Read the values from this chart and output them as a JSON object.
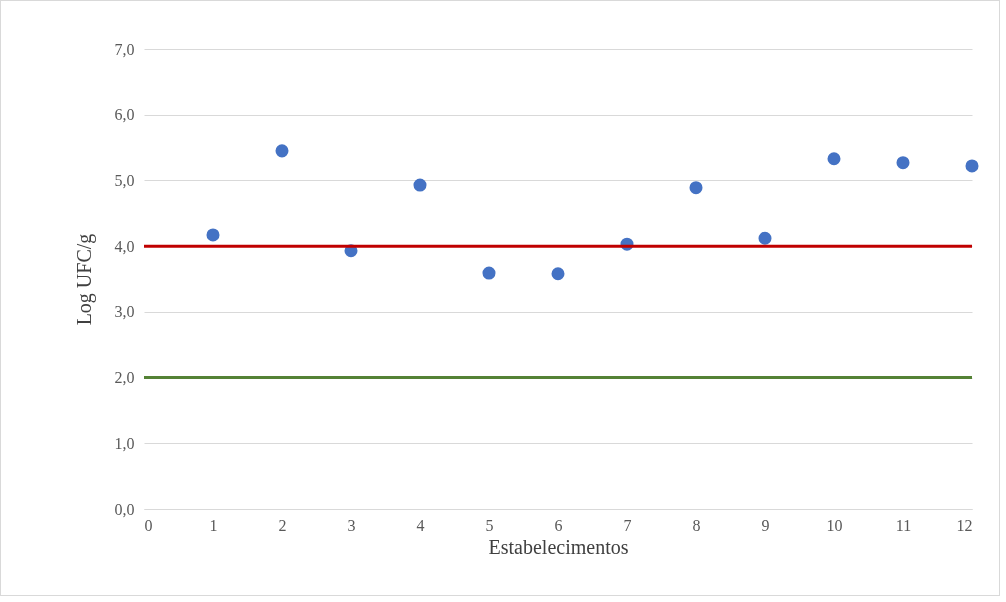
{
  "chart_data": {
    "type": "scatter",
    "xlabel": "Estabelecimentos",
    "ylabel": "Log UFC/g",
    "x": [
      1,
      2,
      3,
      4,
      5,
      6,
      7,
      8,
      9,
      10,
      11,
      12
    ],
    "series": [
      {
        "color": "#4472c4",
        "values": [
          4.17,
          5.45,
          3.93,
          4.93,
          3.59,
          3.58,
          4.03,
          4.89,
          4.12,
          5.33,
          5.27,
          5.22
        ]
      }
    ],
    "xlim": [
      0,
      12
    ],
    "xticks": [
      0,
      1,
      2,
      3,
      4,
      5,
      6,
      7,
      8,
      9,
      10,
      11,
      12
    ],
    "ylim": [
      0,
      7
    ],
    "yticks": [
      {
        "value": 0,
        "label": "0,0"
      },
      {
        "value": 1,
        "label": "1,0"
      },
      {
        "value": 2,
        "label": "2,0"
      },
      {
        "value": 3,
        "label": "3,0"
      },
      {
        "value": 4,
        "label": "4,0"
      },
      {
        "value": 5,
        "label": "5,0"
      },
      {
        "value": 6,
        "label": "6,0"
      },
      {
        "value": 7,
        "label": "7,0"
      }
    ],
    "ref_lines": [
      {
        "axis": "y",
        "value": 4,
        "color": "#c00000"
      },
      {
        "axis": "y",
        "value": 2,
        "color": "#548235"
      }
    ],
    "grid": "y",
    "marker": "circle"
  }
}
